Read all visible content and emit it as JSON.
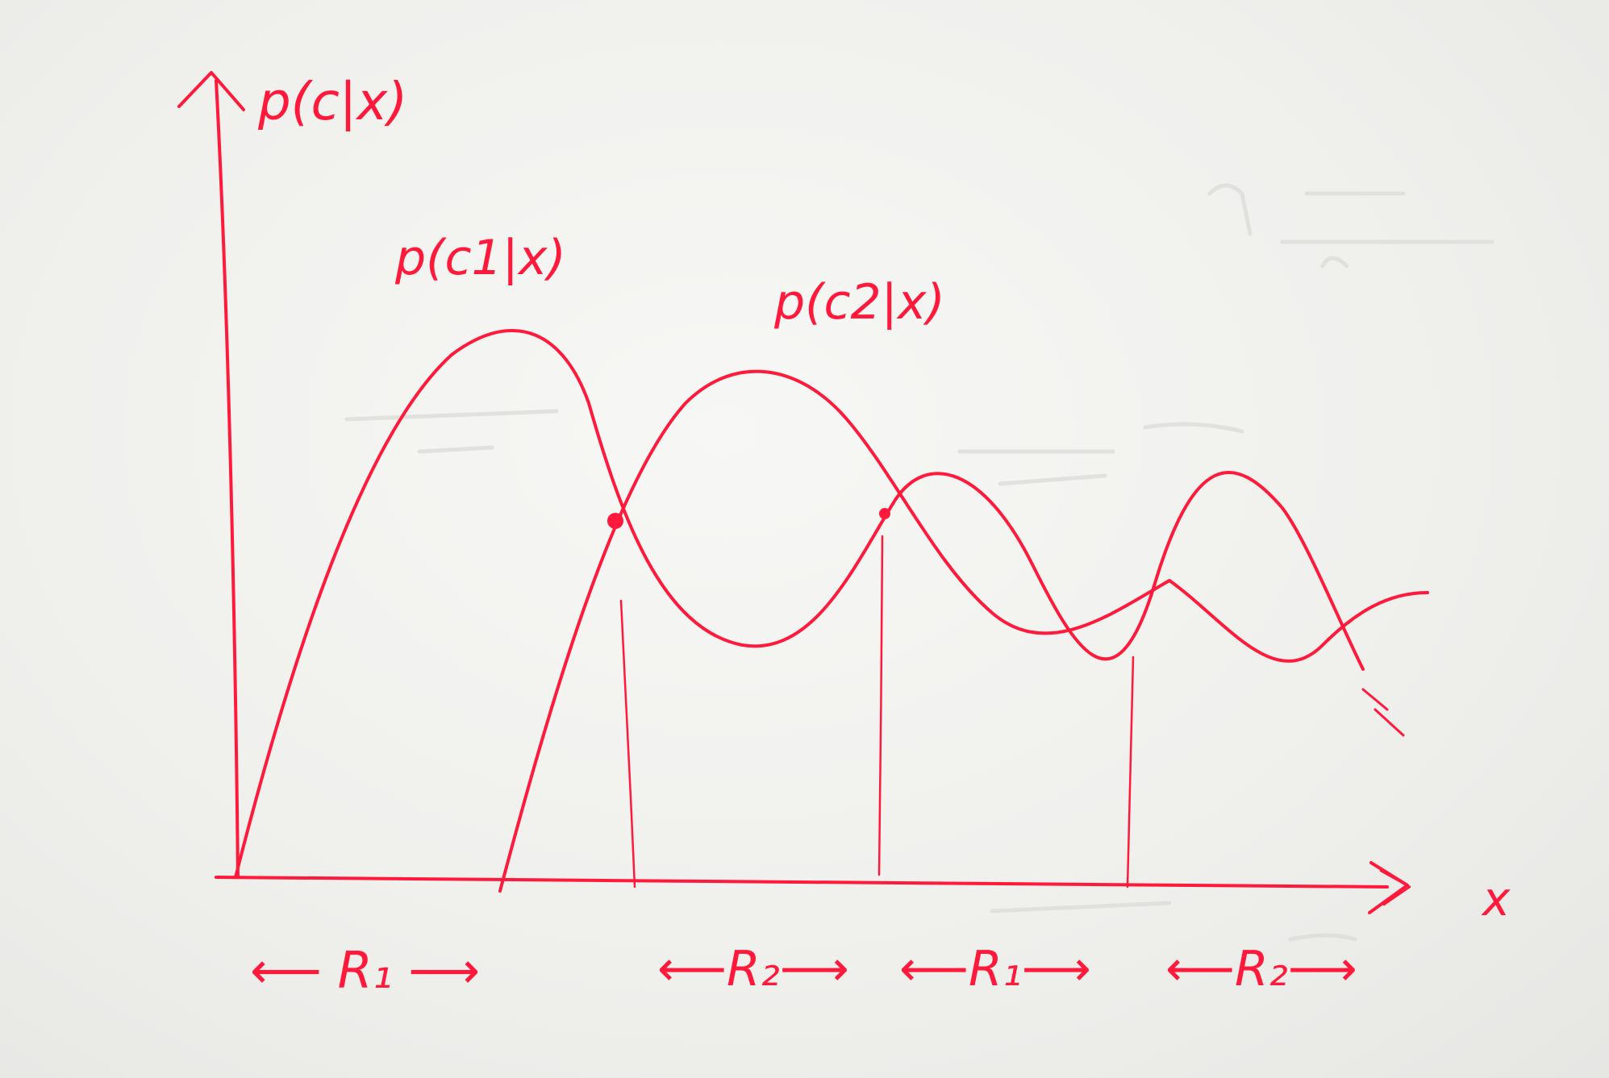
{
  "diagram": {
    "ink_color": "#ff1a3c",
    "ghost_color": "#dcdcd8",
    "y_axis_label": "p(c|x)",
    "x_axis_label": "x",
    "curve_c1_label": "p(c1|x)",
    "curve_c2_label": "p(c2|x)",
    "regions": [
      {
        "label": "R1",
        "display": "⟵ R₁ ⟶"
      },
      {
        "label": "R2",
        "display": "⟵R₂⟶"
      },
      {
        "label": "R1",
        "display": "⟵R₁⟶"
      },
      {
        "label": "R2",
        "display": "⟵R₂⟶"
      }
    ]
  }
}
